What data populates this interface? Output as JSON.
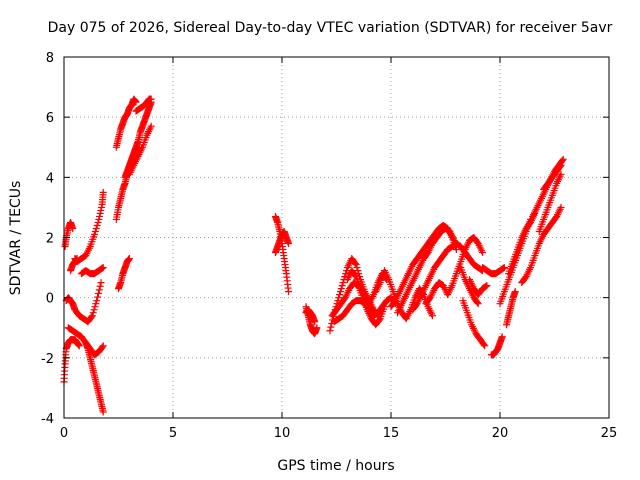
{
  "chart_data": {
    "type": "scatter",
    "title": "Day 075 of 2026, Sidereal Day-to-day VTEC variation (SDTVAR) for receiver 5avr",
    "xlabel": "GPS time / hours",
    "ylabel": "SDTVAR / TECUs",
    "xlim": [
      0,
      25
    ],
    "ylim": [
      -4,
      8
    ],
    "xticks": [
      0,
      5,
      10,
      15,
      20,
      25
    ],
    "yticks": [
      -4,
      -2,
      0,
      2,
      4,
      6,
      8
    ],
    "grid": true,
    "marker": "plus",
    "color": "#ff0000",
    "tracks": [
      {
        "x": [
          0.05,
          0.1,
          0.2,
          0.3,
          0.4
        ],
        "y": [
          1.7,
          2.0,
          2.3,
          2.5,
          2.3
        ]
      },
      {
        "x": [
          0.5,
          0.6,
          0.8,
          1.0,
          1.2,
          1.4,
          1.6,
          1.75,
          1.8
        ],
        "y": [
          1.3,
          1.2,
          1.3,
          1.4,
          1.7,
          2.1,
          2.6,
          3.1,
          3.5
        ]
      },
      {
        "x": [
          0.8,
          1.0,
          1.2,
          1.4,
          1.6,
          1.8
        ],
        "y": [
          0.8,
          0.9,
          0.8,
          0.8,
          0.9,
          1.0
        ]
      },
      {
        "x": [
          0.0,
          0.05,
          0.1,
          0.2,
          0.3,
          0.4,
          0.5,
          0.6,
          0.7
        ],
        "y": [
          -2.8,
          -2.2,
          -1.7,
          -1.5,
          -1.4,
          -1.4,
          -1.4,
          -1.5,
          -1.6
        ]
      },
      {
        "x": [
          0.1,
          0.2,
          0.3,
          0.4,
          0.5,
          0.7,
          0.9,
          1.1,
          1.3,
          1.5,
          1.7
        ],
        "y": [
          -0.1,
          0.0,
          -0.1,
          -0.2,
          -0.4,
          -0.6,
          -0.7,
          -0.8,
          -0.6,
          -0.1,
          0.5
        ]
      },
      {
        "x": [
          0.2,
          0.4,
          0.6,
          0.8,
          1.0,
          1.2,
          1.4,
          1.6,
          1.8
        ],
        "y": [
          -1.0,
          -1.1,
          -1.2,
          -1.3,
          -1.5,
          -1.7,
          -1.9,
          -1.8,
          -1.6
        ]
      },
      {
        "x": [
          1.0,
          1.1,
          1.2,
          1.3,
          1.4,
          1.5,
          1.6,
          1.7,
          1.8
        ],
        "y": [
          -1.5,
          -1.7,
          -2.0,
          -2.3,
          -2.6,
          -2.9,
          -3.2,
          -3.5,
          -3.8
        ]
      },
      {
        "x": [
          0.3,
          0.4,
          0.5,
          0.6
        ],
        "y": [
          0.9,
          1.1,
          1.2,
          1.3
        ]
      },
      {
        "x": [
          2.5,
          2.6,
          2.7,
          2.8,
          2.9,
          3.0
        ],
        "y": [
          0.3,
          0.5,
          0.8,
          1.0,
          1.2,
          1.3
        ]
      },
      {
        "x": [
          2.4,
          2.5,
          2.6,
          2.7,
          2.8,
          2.9,
          3.0,
          3.1,
          3.2,
          3.3,
          3.4
        ],
        "y": [
          2.6,
          3.0,
          3.3,
          3.6,
          3.8,
          4.1,
          4.3,
          4.5,
          4.7,
          4.9,
          5.0
        ]
      },
      {
        "x": [
          2.4,
          2.5,
          2.6,
          2.7,
          2.8,
          2.9,
          3.0,
          3.1,
          3.2,
          3.3
        ],
        "y": [
          5.0,
          5.3,
          5.6,
          5.8,
          6.0,
          6.1,
          6.3,
          6.4,
          6.6,
          6.5
        ]
      },
      {
        "x": [
          2.8,
          2.9,
          3.0,
          3.1,
          3.2,
          3.3,
          3.4,
          3.5,
          3.6,
          3.7,
          3.8,
          3.9,
          4.0
        ],
        "y": [
          4.0,
          4.2,
          4.4,
          4.6,
          4.8,
          5.0,
          5.2,
          5.5,
          5.7,
          5.9,
          6.1,
          6.3,
          6.5
        ]
      },
      {
        "x": [
          3.0,
          3.2,
          3.4,
          3.6,
          3.8,
          4.0
        ],
        "y": [
          4.1,
          4.4,
          4.7,
          5.0,
          5.4,
          5.7
        ]
      },
      {
        "x": [
          3.3,
          3.5,
          3.7,
          3.9,
          4.0
        ],
        "y": [
          6.2,
          6.3,
          6.4,
          6.6,
          6.6
        ]
      },
      {
        "x": [
          9.7,
          9.8,
          9.9,
          10.0,
          10.1,
          10.2,
          10.3
        ],
        "y": [
          2.7,
          2.5,
          2.2,
          1.8,
          1.3,
          0.8,
          0.2
        ]
      },
      {
        "x": [
          9.7,
          9.8,
          9.9,
          10.0,
          10.1,
          10.2,
          10.3
        ],
        "y": [
          1.5,
          1.7,
          1.9,
          2.1,
          2.2,
          2.0,
          1.8
        ]
      },
      {
        "x": [
          11.1,
          11.2,
          11.3,
          11.4,
          11.5,
          11.6
        ],
        "y": [
          -0.3,
          -0.6,
          -0.9,
          -1.1,
          -1.2,
          -1.0
        ]
      },
      {
        "x": [
          11.1,
          11.2,
          11.3,
          11.4,
          11.5
        ],
        "y": [
          -0.5,
          -0.4,
          -0.5,
          -0.6,
          -0.8
        ]
      },
      {
        "x": [
          12.2,
          12.4,
          12.6,
          12.8,
          13.0,
          13.2,
          13.4,
          13.6,
          13.8,
          14.0,
          14.2,
          14.4
        ],
        "y": [
          -1.1,
          -0.5,
          0.0,
          0.5,
          1.0,
          1.3,
          1.1,
          0.6,
          0.2,
          -0.1,
          -0.4,
          -0.6
        ]
      },
      {
        "x": [
          12.3,
          12.5,
          12.7,
          12.9,
          13.1,
          13.3,
          13.5,
          13.7,
          13.9,
          14.1,
          14.3,
          14.5,
          14.7
        ],
        "y": [
          -0.6,
          -0.4,
          -0.2,
          0.0,
          0.3,
          0.5,
          0.4,
          0.0,
          -0.4,
          -0.7,
          -0.9,
          -0.7,
          -0.3
        ]
      },
      {
        "x": [
          12.4,
          12.6,
          12.8,
          13.0,
          13.2,
          13.4,
          13.6,
          13.8,
          14.0,
          14.2,
          14.4,
          14.6,
          14.8,
          15.0,
          15.2
        ],
        "y": [
          -0.8,
          -0.7,
          -0.6,
          -0.4,
          -0.2,
          -0.1,
          -0.1,
          -0.2,
          -0.4,
          -0.6,
          -0.5,
          -0.3,
          -0.1,
          0.0,
          -0.2
        ]
      },
      {
        "x": [
          13.0,
          13.2,
          13.4,
          13.6,
          13.8,
          14.0,
          14.2,
          14.4,
          14.6,
          14.8
        ],
        "y": [
          0.6,
          0.9,
          0.7,
          0.3,
          0.0,
          -0.2,
          0.1,
          0.5,
          0.8,
          0.6
        ]
      },
      {
        "x": [
          14.3,
          14.5,
          14.7,
          14.9,
          15.1,
          15.3,
          15.5,
          15.7,
          15.9,
          16.1,
          16.3,
          16.5,
          16.7,
          16.9
        ],
        "y": [
          0.2,
          0.5,
          0.9,
          0.6,
          0.2,
          -0.2,
          -0.5,
          -0.7,
          -0.4,
          0.0,
          0.3,
          0.1,
          -0.3,
          -0.6
        ]
      },
      {
        "x": [
          15.0,
          15.2,
          15.4,
          15.6,
          15.8,
          16.0,
          16.2,
          16.4,
          16.6,
          16.8,
          17.0,
          17.2,
          17.4,
          17.6,
          17.8,
          18.0
        ],
        "y": [
          -0.3,
          -0.1,
          0.2,
          0.5,
          0.8,
          1.1,
          1.3,
          1.5,
          1.7,
          1.9,
          2.1,
          2.3,
          2.4,
          2.3,
          2.0,
          1.6
        ]
      },
      {
        "x": [
          15.3,
          15.5,
          15.7,
          15.9,
          16.1,
          16.3,
          16.5,
          16.7,
          16.9,
          17.1,
          17.3,
          17.5,
          17.7,
          17.9
        ],
        "y": [
          -0.5,
          -0.2,
          0.1,
          0.4,
          0.7,
          1.0,
          1.3,
          1.5,
          1.8,
          2.0,
          2.2,
          2.3,
          2.2,
          1.9
        ]
      },
      {
        "x": [
          16.0,
          16.2,
          16.4,
          16.6,
          16.8,
          17.0,
          17.2,
          17.4,
          17.6,
          17.8,
          18.0
        ],
        "y": [
          -0.4,
          -0.2,
          0.1,
          0.4,
          0.7,
          1.0,
          1.2,
          1.4,
          1.6,
          1.7,
          1.8
        ]
      },
      {
        "x": [
          16.6,
          16.8,
          17.0,
          17.2,
          17.4,
          17.6,
          17.8,
          18.0,
          18.2,
          18.4,
          18.6,
          18.8,
          19.0,
          19.2
        ],
        "y": [
          -0.2,
          0.0,
          0.3,
          0.5,
          0.4,
          0.1,
          0.4,
          0.8,
          1.2,
          1.6,
          1.9,
          2.0,
          1.8,
          1.5
        ]
      },
      {
        "x": [
          18.0,
          18.2,
          18.4,
          18.6,
          18.8,
          19.0,
          19.2
        ],
        "y": [
          1.8,
          1.7,
          1.5,
          1.3,
          1.1,
          1.0,
          0.9
        ]
      },
      {
        "x": [
          18.2,
          18.4,
          18.6,
          18.8,
          19.0
        ],
        "y": [
          1.0,
          0.6,
          0.3,
          0.0,
          -0.2
        ]
      },
      {
        "x": [
          18.3,
          18.5,
          18.7,
          18.9,
          19.1,
          19.3
        ],
        "y": [
          -0.1,
          -0.5,
          -0.9,
          -1.2,
          -1.4,
          -1.6
        ]
      },
      {
        "x": [
          18.6,
          18.8,
          19.0,
          19.2,
          19.4
        ],
        "y": [
          0.6,
          0.3,
          0.1,
          0.3,
          0.4
        ]
      },
      {
        "x": [
          19.2,
          19.4,
          19.6,
          19.8,
          20.0,
          20.2
        ],
        "y": [
          1.0,
          0.9,
          0.8,
          0.8,
          0.9,
          1.0
        ]
      },
      {
        "x": [
          19.6,
          19.7,
          19.8,
          19.9,
          20.0,
          20.1
        ],
        "y": [
          -1.9,
          -1.9,
          -1.8,
          -1.7,
          -1.5,
          -1.3
        ]
      },
      {
        "x": [
          20.3,
          20.4,
          20.5,
          20.6,
          20.7
        ],
        "y": [
          -0.9,
          -0.6,
          -0.3,
          0.0,
          0.2
        ]
      },
      {
        "x": [
          20.0,
          20.2,
          20.4,
          20.6,
          20.8,
          21.0,
          21.2,
          21.4
        ],
        "y": [
          -0.2,
          0.2,
          0.6,
          1.0,
          1.4,
          1.8,
          2.2,
          2.6
        ]
      },
      {
        "x": [
          20.4,
          20.6,
          20.8,
          21.0,
          21.2,
          21.4,
          21.6
        ],
        "y": [
          0.8,
          1.2,
          1.6,
          2.0,
          2.3,
          2.5,
          2.8
        ]
      },
      {
        "x": [
          21.0,
          21.2,
          21.4,
          21.6,
          21.8,
          22.0,
          22.2,
          22.4,
          22.6,
          22.8
        ],
        "y": [
          0.5,
          0.7,
          1.0,
          1.4,
          1.8,
          2.1,
          2.3,
          2.5,
          2.7,
          3.0
        ]
      },
      {
        "x": [
          21.5,
          21.7,
          21.9,
          22.1,
          22.3,
          22.5,
          22.7,
          22.9
        ],
        "y": [
          2.7,
          3.0,
          3.3,
          3.6,
          3.9,
          4.2,
          4.4,
          4.6
        ]
      },
      {
        "x": [
          21.8,
          22.0,
          22.2,
          22.4,
          22.6,
          22.8
        ],
        "y": [
          2.2,
          2.6,
          3.0,
          3.4,
          3.8,
          4.1
        ]
      },
      {
        "x": [
          22.0,
          22.2,
          22.4,
          22.6,
          22.8
        ],
        "y": [
          3.6,
          3.8,
          4.0,
          4.2,
          4.4
        ]
      }
    ]
  }
}
